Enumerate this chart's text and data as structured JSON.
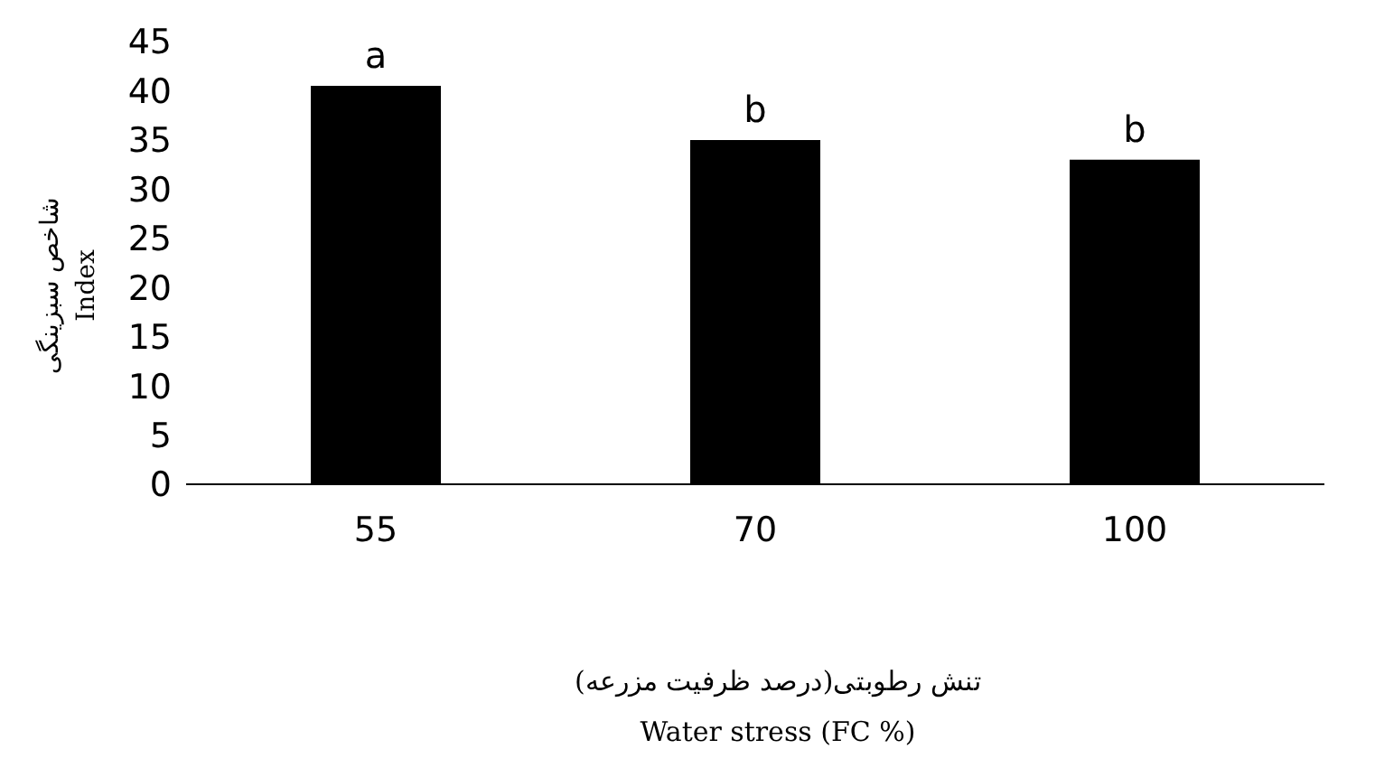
{
  "chart_data": {
    "type": "bar",
    "categories": [
      "55",
      "70",
      "100"
    ],
    "values": [
      40.5,
      35,
      33
    ],
    "color": "#000000",
    "ylim": [
      0,
      45
    ],
    "yticks": [
      0,
      5,
      10,
      15,
      20,
      25,
      30,
      35,
      40,
      45
    ],
    "grid": false,
    "legend": false,
    "ylabel": "شاخص سبزینگی\nIndex",
    "xlabel": "تنش رطوبتی(درصد ظرفیت مزرعه)\nWater stress (FC %)",
    "annotations": [
      {
        "text": "a",
        "x": "55",
        "y": 40.5
      },
      {
        "text": "b",
        "x": "70",
        "y": 35
      },
      {
        "text": "b",
        "x": "100",
        "y": 33
      }
    ]
  }
}
